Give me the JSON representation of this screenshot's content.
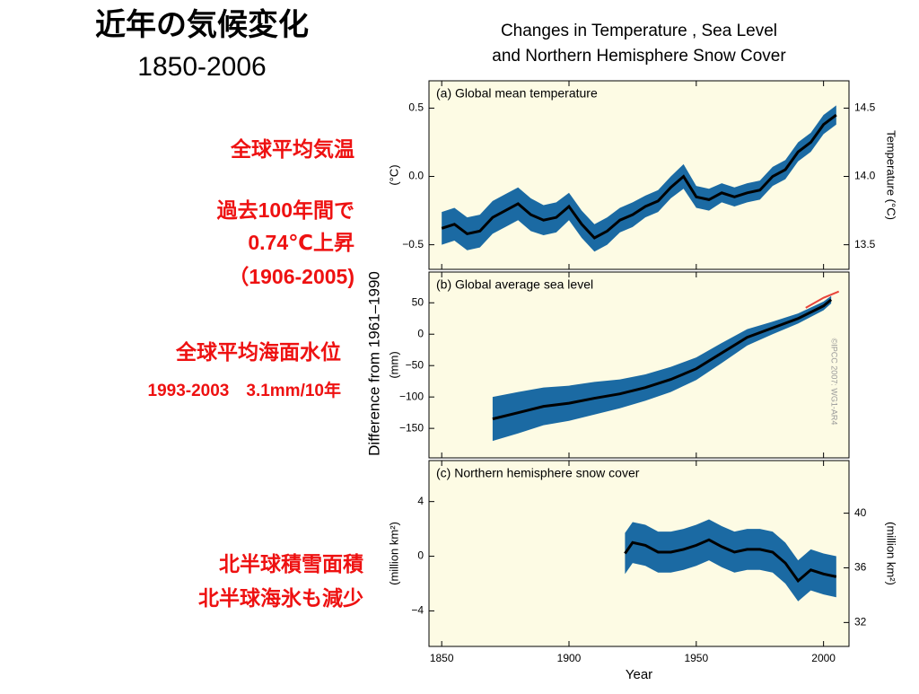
{
  "slide": {
    "title": "近年の気候変化",
    "subtitle": "1850-2006",
    "notes": [
      "全球平均気温",
      "過去100年間で",
      "0.74℃上昇",
      "（1906-2005)",
      "全球平均海面水位",
      "1993-2003　3.1mm/10年",
      "北半球積雪面積",
      "北半球海氷も減少"
    ]
  },
  "figure": {
    "title": [
      "Changes in Temperature , Sea Level",
      "and Northern Hemisphere Snow Cover"
    ],
    "ylabel": "Difference from 1961–1990",
    "xlabel": "Year",
    "credit": "©IPCC 2007: WG1-AR4",
    "xlim": [
      1845,
      2010
    ],
    "xticks": [
      1850,
      1900,
      1950,
      2000
    ]
  },
  "chart_data": [
    {
      "type": "line",
      "title": "(a) Global mean temperature",
      "ylabel": "(°C)",
      "y2label": "Temperature (°C)",
      "ylim": [
        -0.68,
        0.7
      ],
      "yticks": [
        0.5,
        {
          "value": 0,
          "label": "0.0"
        },
        {
          "value": -0.5,
          "label": "−0.5"
        }
      ],
      "y2lim": [
        13.32,
        14.7
      ],
      "y2ticks": [
        {
          "value": 13.5,
          "label": "13.5"
        },
        {
          "value": 14,
          "label": "14.0"
        },
        {
          "value": 14.5,
          "label": "14.5"
        }
      ],
      "band_color": "#1b6aa3",
      "color": "#000000",
      "x": [
        1850,
        1855,
        1860,
        1865,
        1870,
        1875,
        1880,
        1885,
        1890,
        1895,
        1900,
        1905,
        1910,
        1915,
        1920,
        1925,
        1930,
        1935,
        1940,
        1945,
        1950,
        1955,
        1960,
        1965,
        1970,
        1975,
        1980,
        1985,
        1990,
        1995,
        2000,
        2005
      ],
      "values": [
        -0.38,
        -0.35,
        -0.42,
        -0.4,
        -0.3,
        -0.25,
        -0.2,
        -0.28,
        -0.32,
        -0.3,
        -0.22,
        -0.35,
        -0.45,
        -0.4,
        -0.32,
        -0.28,
        -0.22,
        -0.18,
        -0.08,
        0.0,
        -0.15,
        -0.17,
        -0.12,
        -0.15,
        -0.12,
        -0.1,
        0.0,
        0.05,
        0.18,
        0.25,
        0.38,
        0.45
      ],
      "lower": [
        -0.5,
        -0.47,
        -0.54,
        -0.52,
        -0.42,
        -0.37,
        -0.32,
        -0.4,
        -0.43,
        -0.41,
        -0.32,
        -0.45,
        -0.55,
        -0.5,
        -0.41,
        -0.37,
        -0.3,
        -0.26,
        -0.16,
        -0.09,
        -0.23,
        -0.25,
        -0.19,
        -0.22,
        -0.19,
        -0.17,
        -0.07,
        -0.02,
        0.11,
        0.18,
        0.31,
        0.38
      ],
      "upper": [
        -0.26,
        -0.23,
        -0.3,
        -0.28,
        -0.18,
        -0.13,
        -0.08,
        -0.16,
        -0.21,
        -0.19,
        -0.12,
        -0.25,
        -0.35,
        -0.3,
        -0.23,
        -0.19,
        -0.14,
        -0.1,
        0.0,
        0.09,
        -0.07,
        -0.09,
        -0.05,
        -0.08,
        -0.05,
        -0.03,
        0.07,
        0.12,
        0.25,
        0.32,
        0.45,
        0.52
      ]
    },
    {
      "type": "line",
      "title": "(b) Global average sea level",
      "ylabel": "(mm)",
      "ylim": [
        -197,
        99
      ],
      "yticks": [
        50,
        0,
        {
          "value": -50,
          "label": "−50"
        },
        {
          "value": -100,
          "label": "−100"
        },
        {
          "value": -150,
          "label": "−150"
        }
      ],
      "band_color": "#1b6aa3",
      "color": "#000000",
      "x": [
        1870,
        1880,
        1890,
        1900,
        1910,
        1920,
        1930,
        1940,
        1950,
        1960,
        1970,
        1980,
        1990,
        2000,
        2003
      ],
      "values": [
        -135,
        -125,
        -115,
        -110,
        -102,
        -95,
        -85,
        -72,
        -55,
        -30,
        -5,
        10,
        25,
        45,
        55
      ],
      "lower": [
        -170,
        -158,
        -145,
        -138,
        -128,
        -118,
        -106,
        -92,
        -73,
        -46,
        -18,
        0,
        17,
        38,
        49
      ],
      "upper": [
        -100,
        -92,
        -85,
        -82,
        -76,
        -72,
        -64,
        -52,
        -37,
        -14,
        8,
        20,
        33,
        52,
        61
      ],
      "satellite": {
        "color": "#e8443a",
        "x": [
          1993,
          2000,
          2006
        ],
        "values": [
          42,
          58,
          68
        ]
      }
    },
    {
      "type": "line",
      "title": "(c) Northern hemisphere snow cover",
      "ylabel": "(million km²)",
      "y2label": "(million km²)",
      "ylim": [
        -6.6,
        7.0
      ],
      "yticks": [
        4,
        0,
        {
          "value": -4,
          "label": "−4"
        }
      ],
      "y2lim": [
        30.25,
        43.85
      ],
      "y2ticks": [
        32,
        36,
        40
      ],
      "band_color": "#1b6aa3",
      "color": "#000000",
      "x": [
        1922,
        1925,
        1930,
        1935,
        1940,
        1945,
        1950,
        1955,
        1960,
        1965,
        1970,
        1975,
        1980,
        1985,
        1990,
        1995,
        2000,
        2005
      ],
      "values": [
        0.2,
        1.0,
        0.8,
        0.3,
        0.3,
        0.5,
        0.8,
        1.2,
        0.7,
        0.3,
        0.5,
        0.5,
        0.3,
        -0.5,
        -1.8,
        -1.0,
        -1.3,
        -1.5
      ],
      "lower": [
        -1.3,
        -0.5,
        -0.7,
        -1.2,
        -1.2,
        -1.0,
        -0.7,
        -0.3,
        -0.8,
        -1.2,
        -1.0,
        -1.0,
        -1.2,
        -2.0,
        -3.3,
        -2.5,
        -2.8,
        -3.0
      ],
      "upper": [
        1.7,
        2.5,
        2.3,
        1.8,
        1.8,
        2.0,
        2.3,
        2.7,
        2.2,
        1.8,
        2.0,
        2.0,
        1.8,
        1.0,
        -0.3,
        0.5,
        0.2,
        0.0
      ]
    }
  ]
}
